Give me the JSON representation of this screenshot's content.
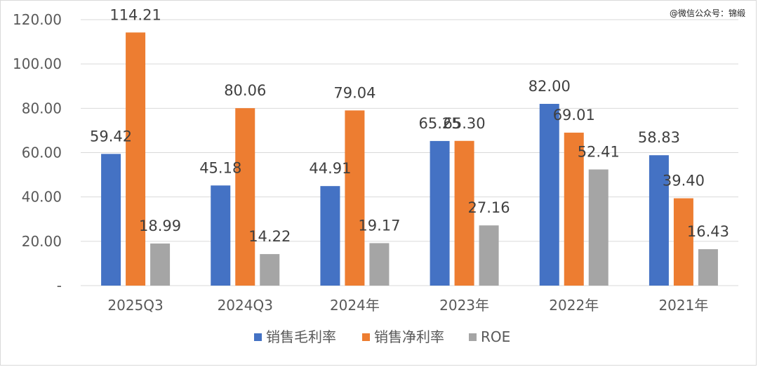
{
  "watermark": "@微信公众号：锦缎",
  "colors": {
    "gross": "#4472C4",
    "net": "#ED7D31",
    "roe": "#A5A5A5",
    "grid": "#D9D9D9",
    "text": "#595959"
  },
  "chart_data": {
    "type": "bar",
    "categories": [
      "2025Q3",
      "2024Q3",
      "2024年",
      "2023年",
      "2022年",
      "2021年"
    ],
    "series": [
      {
        "name": "销售毛利率",
        "values": [
          59.42,
          45.18,
          44.91,
          65.25,
          82.0,
          58.83
        ],
        "labels": [
          "59.42",
          "45.18",
          "44.91",
          "65.25",
          "82.00",
          "58.83"
        ]
      },
      {
        "name": "销售净利率",
        "values": [
          114.21,
          80.06,
          79.04,
          65.3,
          69.01,
          39.4
        ],
        "labels": [
          "114.21",
          "80.06",
          "79.04",
          "65.30",
          "69.01",
          "39.40"
        ]
      },
      {
        "name": "ROE",
        "values": [
          18.99,
          14.22,
          19.17,
          27.16,
          52.41,
          16.43
        ],
        "labels": [
          "18.99",
          "14.22",
          "19.17",
          "27.16",
          "52.41",
          "16.43"
        ]
      }
    ],
    "y_ticks": [
      "-",
      "20.00",
      "40.00",
      "60.00",
      "80.00",
      "100.00",
      "120.00"
    ],
    "ylim": [
      0,
      120
    ],
    "grid": true,
    "legend": "bottom"
  }
}
